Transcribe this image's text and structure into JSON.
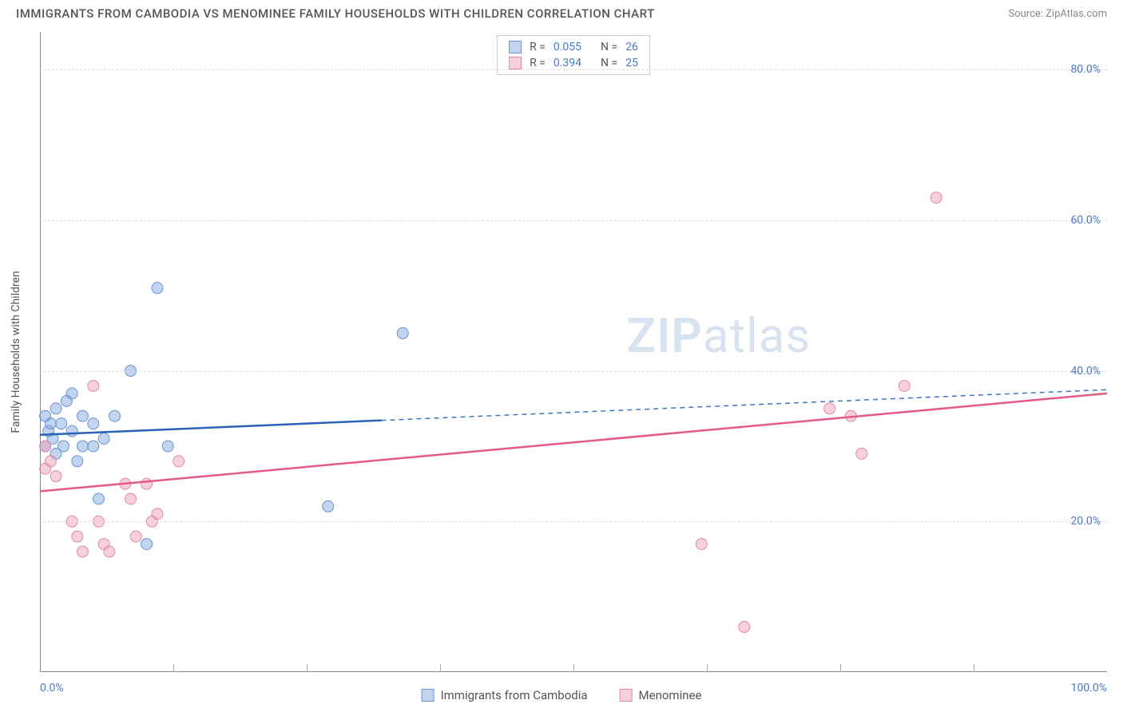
{
  "title": "IMMIGRANTS FROM CAMBODIA VS MENOMINEE FAMILY HOUSEHOLDS WITH CHILDREN CORRELATION CHART",
  "source": "Source: ZipAtlas.com",
  "y_label": "Family Households with Children",
  "watermark": {
    "bold": "ZIP",
    "rest": "atlas"
  },
  "chart": {
    "type": "scatter",
    "x_range": [
      0,
      100
    ],
    "y_range": [
      0,
      85
    ],
    "x_ticks": [
      {
        "value": 0,
        "label": "0.0%",
        "align": "left"
      },
      {
        "value": 100,
        "label": "100.0%",
        "align": "right"
      }
    ],
    "x_minor_ticks": [
      12.5,
      25,
      37.5,
      50,
      62.5,
      75,
      87.5
    ],
    "y_ticks": [
      {
        "value": 20,
        "label": "20.0%"
      },
      {
        "value": 40,
        "label": "40.0%"
      },
      {
        "value": 60,
        "label": "60.0%"
      },
      {
        "value": 80,
        "label": "80.0%"
      }
    ],
    "grid_color": "#dddddd",
    "axis_color": "#888888",
    "background_color": "#ffffff",
    "tick_label_color": "#4a7bc4",
    "marker_radius": 7,
    "series": [
      {
        "id": "cambodia",
        "label": "Immigrants from Cambodia",
        "fill": "rgba(120,160,220,0.45)",
        "stroke": "#6a95d0",
        "line_color": "#2a62b8",
        "dash_color": "#3d74c4",
        "R": "0.055",
        "N": "26",
        "trend": {
          "y_at_x0": 31.5,
          "y_at_x100": 37.5,
          "solid_x_end": 32
        },
        "points": [
          {
            "x": 0.5,
            "y": 34
          },
          {
            "x": 0.5,
            "y": 30
          },
          {
            "x": 0.8,
            "y": 32
          },
          {
            "x": 1.0,
            "y": 33
          },
          {
            "x": 1.2,
            "y": 31
          },
          {
            "x": 1.5,
            "y": 35
          },
          {
            "x": 1.5,
            "y": 29
          },
          {
            "x": 2.0,
            "y": 33
          },
          {
            "x": 2.2,
            "y": 30
          },
          {
            "x": 2.5,
            "y": 36
          },
          {
            "x": 3.0,
            "y": 37
          },
          {
            "x": 3.0,
            "y": 32
          },
          {
            "x": 3.5,
            "y": 28
          },
          {
            "x": 4.0,
            "y": 34
          },
          {
            "x": 4.0,
            "y": 30
          },
          {
            "x": 5.0,
            "y": 33
          },
          {
            "x": 5.5,
            "y": 23
          },
          {
            "x": 6.0,
            "y": 31
          },
          {
            "x": 7.0,
            "y": 34
          },
          {
            "x": 8.5,
            "y": 40
          },
          {
            "x": 10.0,
            "y": 17
          },
          {
            "x": 11.0,
            "y": 51
          },
          {
            "x": 12.0,
            "y": 30
          },
          {
            "x": 27.0,
            "y": 22
          },
          {
            "x": 34.0,
            "y": 45
          },
          {
            "x": 5.0,
            "y": 30
          }
        ]
      },
      {
        "id": "menominee",
        "label": "Menominee",
        "fill": "rgba(240,150,175,0.45)",
        "stroke": "#e08aa5",
        "line_color": "#e35a85",
        "dash_color": "#e35a85",
        "R": "0.394",
        "N": "25",
        "trend": {
          "y_at_x0": 24,
          "y_at_x100": 37,
          "solid_x_end": 100
        },
        "points": [
          {
            "x": 0.5,
            "y": 27
          },
          {
            "x": 0.5,
            "y": 30
          },
          {
            "x": 1.0,
            "y": 28
          },
          {
            "x": 1.5,
            "y": 26
          },
          {
            "x": 3.0,
            "y": 20
          },
          {
            "x": 3.5,
            "y": 18
          },
          {
            "x": 4.0,
            "y": 16
          },
          {
            "x": 5.0,
            "y": 38
          },
          {
            "x": 5.5,
            "y": 20
          },
          {
            "x": 6.0,
            "y": 17
          },
          {
            "x": 6.5,
            "y": 16
          },
          {
            "x": 8.0,
            "y": 25
          },
          {
            "x": 8.5,
            "y": 23
          },
          {
            "x": 9.0,
            "y": 18
          },
          {
            "x": 10.0,
            "y": 25
          },
          {
            "x": 10.5,
            "y": 20
          },
          {
            "x": 11.0,
            "y": 21
          },
          {
            "x": 13.0,
            "y": 28
          },
          {
            "x": 62.0,
            "y": 17
          },
          {
            "x": 66.0,
            "y": 6
          },
          {
            "x": 74.0,
            "y": 35
          },
          {
            "x": 76.0,
            "y": 34
          },
          {
            "x": 77.0,
            "y": 29
          },
          {
            "x": 81.0,
            "y": 38
          },
          {
            "x": 84.0,
            "y": 63
          }
        ]
      }
    ]
  },
  "legend_top_labels": {
    "R": "R =",
    "N": "N ="
  }
}
